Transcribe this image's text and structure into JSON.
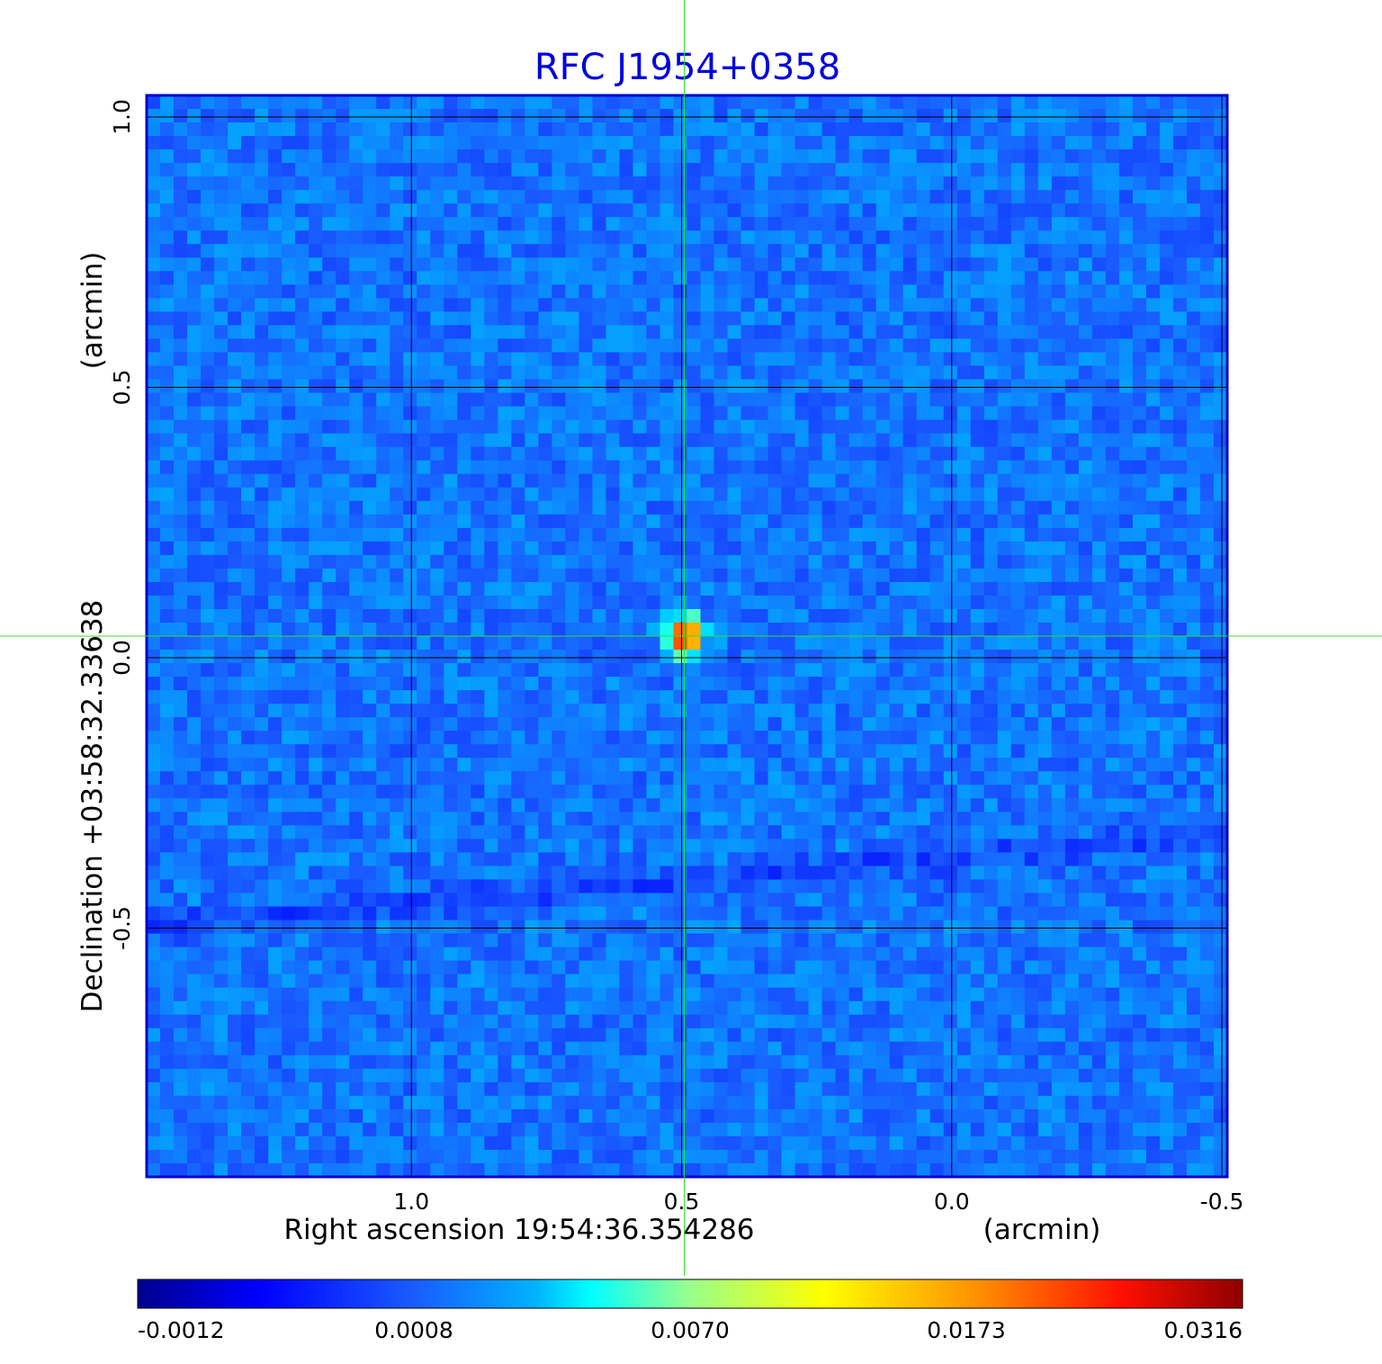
{
  "chart_data": {
    "type": "heatmap",
    "title": "RFC J1954+0358",
    "title_color": "#0000dd",
    "xlabel": "Right ascension  19:54:36.354286",
    "xunit": "(arcmin)",
    "ylabel": "Declination  +03:58:32.33638",
    "yunit": "(arcmin)",
    "x_ticks": [
      "1.0",
      "0.5",
      "0.0",
      "-0.5"
    ],
    "y_ticks": [
      "1.0",
      "0.5",
      "0.0",
      "-0.5"
    ],
    "xlim": [
      1.49,
      -0.51
    ],
    "ylim": [
      -0.96,
      1.04
    ],
    "x_tick_values": [
      1.0,
      0.5,
      0.0,
      -0.5
    ],
    "y_tick_values": [
      1.0,
      0.5,
      0.0,
      -0.5
    ],
    "grid": true,
    "crosshair": {
      "ra": 0.495,
      "dec": 0.04,
      "color": "#33dd33"
    },
    "colormap": "jet",
    "colorbar_ticks": [
      "-0.0012",
      "0.0008",
      "0.0070",
      "0.0173",
      "0.0316"
    ],
    "colorbar_values": [
      -0.0012,
      0.0008,
      0.007,
      0.0173,
      0.0316
    ],
    "source": {
      "ra": 0.495,
      "dec": 0.04,
      "peak": 0.0316
    },
    "frame_color": "#0000cc",
    "grid_color": "#000000"
  }
}
